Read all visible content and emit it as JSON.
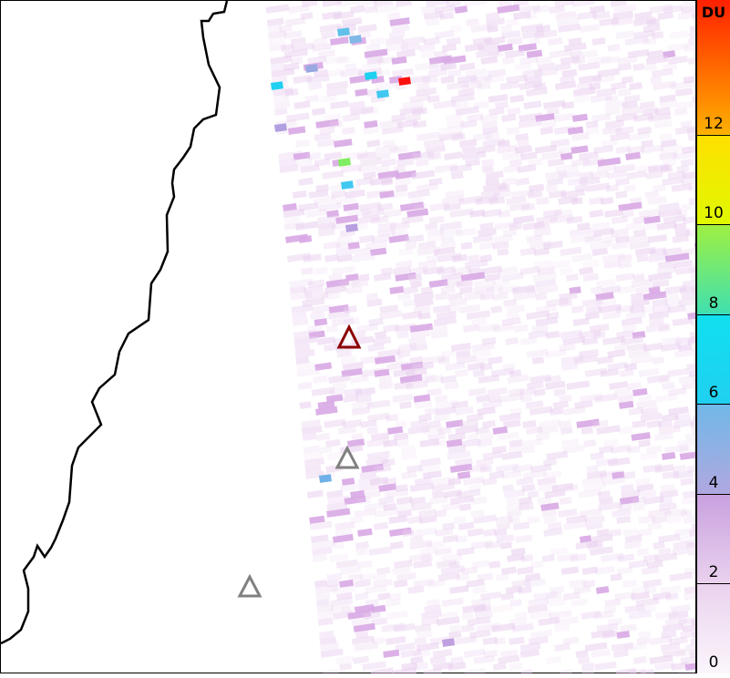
{
  "map": {
    "colorbar": {
      "unit": "DU",
      "ticks": [
        "0",
        "2",
        "4",
        "6",
        "8",
        "10",
        "12"
      ],
      "range": [
        0,
        15
      ],
      "colors": [
        "#f8f2fa",
        "#e6c8ea",
        "#b0a0dc",
        "#70b8e8",
        "#10e0f0",
        "#80ee70",
        "#ffff00",
        "#ffa000",
        "#ff2000"
      ]
    },
    "markers": [
      {
        "type": "volcano-triangle",
        "color": "#8b0000"
      },
      {
        "type": "volcano-triangle",
        "color": "#808080"
      },
      {
        "type": "volcano-triangle",
        "color": "#808080"
      }
    ],
    "coastline_color": "#000000"
  }
}
